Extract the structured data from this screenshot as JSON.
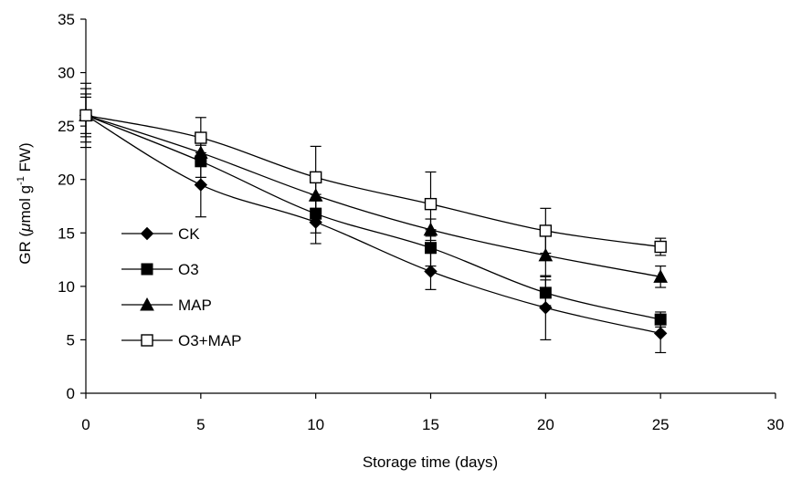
{
  "chart_data": {
    "type": "line",
    "title": "",
    "xlabel": "Storage time (days)",
    "ylabel": {
      "prefix": "GR  (",
      "mu": "μ",
      "mid": "mol g",
      "sup": "-1",
      "suffix": " FW)"
    },
    "xlim": [
      0,
      30
    ],
    "ylim": [
      0,
      35
    ],
    "xticks": [
      0,
      5,
      10,
      15,
      20,
      25,
      30
    ],
    "yticks": [
      0,
      5,
      10,
      15,
      20,
      25,
      30,
      35
    ],
    "grid": false,
    "legend_position": "left",
    "x": [
      0,
      5,
      10,
      15,
      20,
      25
    ],
    "series": [
      {
        "name": "CK",
        "marker": "diamond",
        "values": [
          26.0,
          19.5,
          16.0,
          11.4,
          8.0,
          5.6
        ],
        "error": [
          3.0,
          3.0,
          2.0,
          1.7,
          3.0,
          1.8
        ]
      },
      {
        "name": "O3",
        "marker": "square",
        "values": [
          26.0,
          21.7,
          16.8,
          13.6,
          9.4,
          6.9
        ],
        "error": [
          2.5,
          1.5,
          1.8,
          1.7,
          1.2,
          0.7
        ]
      },
      {
        "name": "MAP",
        "marker": "triangle",
        "values": [
          26.0,
          22.5,
          18.5,
          15.3,
          12.9,
          10.9
        ],
        "error": [
          2.0,
          1.2,
          1.5,
          1.0,
          2.0,
          1.0
        ]
      },
      {
        "name": "O3+MAP",
        "marker": "square-open",
        "values": [
          26.0,
          23.9,
          20.2,
          17.7,
          15.2,
          13.7
        ],
        "error": [
          1.7,
          1.9,
          2.9,
          3.0,
          2.1,
          0.8
        ]
      }
    ]
  }
}
